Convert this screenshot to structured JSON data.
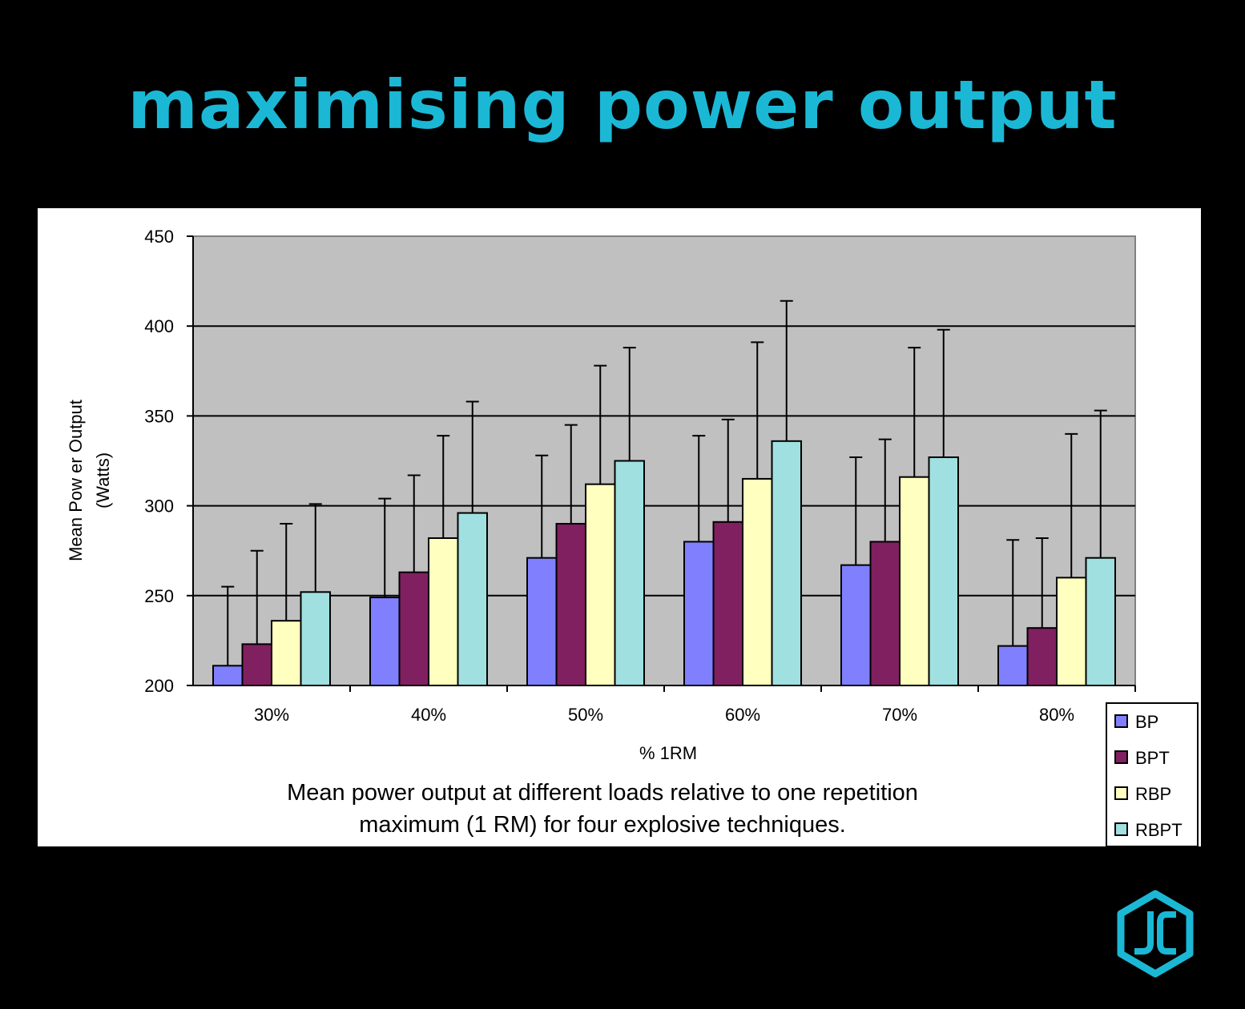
{
  "slide": {
    "title": "maximising power output",
    "caption_line1": "Mean power output at different loads relative to one repetition",
    "caption_line2": "maximum (1 RM) for four explosive techniques.",
    "logo_text": "JC",
    "accent_color": "#1bb8d6"
  },
  "chart_data": {
    "type": "bar",
    "xlabel": "% 1RM",
    "ylabel_line1": "Mean Pow er Output",
    "ylabel_line2": "(Watts)",
    "ylim": [
      200,
      450
    ],
    "yticks": [
      200,
      250,
      300,
      350,
      400,
      450
    ],
    "grid": true,
    "plot_background": "#c0c0c0",
    "legend_placement": "bottom-right",
    "categories": [
      "30%",
      "40%",
      "50%",
      "60%",
      "70%",
      "80%"
    ],
    "error_bars": "upper",
    "series": [
      {
        "name": "BP",
        "color": "#8080ff",
        "values": [
          211,
          249,
          271,
          280,
          267,
          222
        ],
        "upper": [
          255,
          304,
          328,
          339,
          327,
          281
        ]
      },
      {
        "name": "BPT",
        "color": "#802060",
        "values": [
          223,
          263,
          290,
          291,
          280,
          232
        ],
        "upper": [
          275,
          317,
          345,
          348,
          337,
          282
        ]
      },
      {
        "name": "RBP",
        "color": "#ffffc0",
        "values": [
          236,
          282,
          312,
          315,
          316,
          260
        ],
        "upper": [
          290,
          339,
          378,
          391,
          388,
          340
        ]
      },
      {
        "name": "RBPT",
        "color": "#a0e0e0",
        "values": [
          252,
          296,
          325,
          336,
          327,
          271
        ],
        "upper": [
          301,
          358,
          388,
          414,
          398,
          353
        ]
      }
    ]
  }
}
